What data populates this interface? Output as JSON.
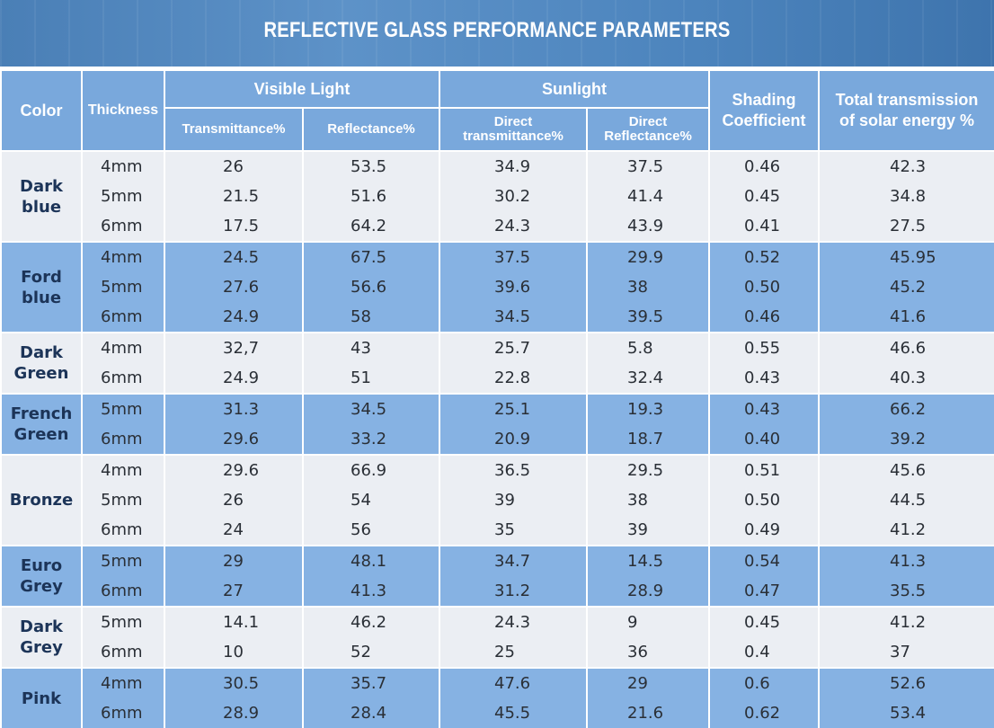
{
  "title": "REFLECTIVE GLASS PERFORMANCE PARAMETERS",
  "headers": {
    "color": "Color",
    "thickness": "Thickness",
    "visible_light": "Visible Light",
    "sunlight": "Sunlight",
    "shading_1": "Shading",
    "shading_2": "Coefficient",
    "total_1": "Total transmission",
    "total_2": "of solar energy %",
    "transmittance": "Transmittance%",
    "reflectance": "Reflectance%",
    "direct_t_1": "Direct",
    "direct_t_2": "transmittance%",
    "direct_r_1": "Direct",
    "direct_r_2": "Reflectance%"
  },
  "groups": [
    {
      "name_1": "Dark",
      "name_2": "blue",
      "rows": [
        {
          "thickness": "4mm",
          "vt": "26",
          "vr": "53.5",
          "dt": "34.9",
          "dr": "37.5",
          "sc": "0.46",
          "tt": "42.3"
        },
        {
          "thickness": "5mm",
          "vt": "21.5",
          "vr": "51.6",
          "dt": "30.2",
          "dr": "41.4",
          "sc": "0.45",
          "tt": "34.8"
        },
        {
          "thickness": "6mm",
          "vt": "17.5",
          "vr": "64.2",
          "dt": "24.3",
          "dr": "43.9",
          "sc": "0.41",
          "tt": "27.5"
        }
      ]
    },
    {
      "name_1": "Ford",
      "name_2": "blue",
      "rows": [
        {
          "thickness": "4mm",
          "vt": "24.5",
          "vr": "67.5",
          "dt": "37.5",
          "dr": "29.9",
          "sc": "0.52",
          "tt": "45.95"
        },
        {
          "thickness": "5mm",
          "vt": "27.6",
          "vr": "56.6",
          "dt": "39.6",
          "dr": "38",
          "sc": "0.50",
          "tt": "45.2"
        },
        {
          "thickness": "6mm",
          "vt": "24.9",
          "vr": "58",
          "dt": "34.5",
          "dr": "39.5",
          "sc": "0.46",
          "tt": "41.6"
        }
      ]
    },
    {
      "name_1": "Dark",
      "name_2": "Green",
      "rows": [
        {
          "thickness": "4mm",
          "vt": "32,7",
          "vr": "43",
          "dt": "25.7",
          "dr": "5.8",
          "sc": "0.55",
          "tt": "46.6"
        },
        {
          "thickness": "6mm",
          "vt": "24.9",
          "vr": "51",
          "dt": "22.8",
          "dr": "32.4",
          "sc": "0.43",
          "tt": "40.3"
        }
      ]
    },
    {
      "name_1": "French",
      "name_2": "Green",
      "rows": [
        {
          "thickness": "5mm",
          "vt": "31.3",
          "vr": "34.5",
          "dt": "25.1",
          "dr": "19.3",
          "sc": "0.43",
          "tt": "66.2"
        },
        {
          "thickness": "6mm",
          "vt": "29.6",
          "vr": "33.2",
          "dt": "20.9",
          "dr": "18.7",
          "sc": "0.40",
          "tt": "39.2"
        }
      ]
    },
    {
      "name_1": "Bronze",
      "name_2": "",
      "rows": [
        {
          "thickness": "4mm",
          "vt": "29.6",
          "vr": "66.9",
          "dt": "36.5",
          "dr": "29.5",
          "sc": "0.51",
          "tt": "45.6"
        },
        {
          "thickness": "5mm",
          "vt": "26",
          "vr": "54",
          "dt": "39",
          "dr": "38",
          "sc": "0.50",
          "tt": "44.5"
        },
        {
          "thickness": "6mm",
          "vt": "24",
          "vr": "56",
          "dt": "35",
          "dr": "39",
          "sc": "0.49",
          "tt": "41.2"
        }
      ]
    },
    {
      "name_1": "Euro",
      "name_2": "Grey",
      "rows": [
        {
          "thickness": "5mm",
          "vt": "29",
          "vr": "48.1",
          "dt": "34.7",
          "dr": "14.5",
          "sc": "0.54",
          "tt": "41.3"
        },
        {
          "thickness": "6mm",
          "vt": "27",
          "vr": "41.3",
          "dt": "31.2",
          "dr": "28.9",
          "sc": "0.47",
          "tt": "35.5"
        }
      ]
    },
    {
      "name_1": "Dark",
      "name_2": "Grey",
      "rows": [
        {
          "thickness": "5mm",
          "vt": "14.1",
          "vr": "46.2",
          "dt": "24.3",
          "dr": "9",
          "sc": "0.45",
          "tt": "41.2"
        },
        {
          "thickness": "6mm",
          "vt": "10",
          "vr": "52",
          "dt": "25",
          "dr": "36",
          "sc": "0.4",
          "tt": "37"
        }
      ]
    },
    {
      "name_1": "Pink",
      "name_2": "",
      "rows": [
        {
          "thickness": "4mm",
          "vt": "30.5",
          "vr": "35.7",
          "dt": "47.6",
          "dr": "29",
          "sc": "0.6",
          "tt": "52.6"
        },
        {
          "thickness": "6mm",
          "vt": "28.9",
          "vr": "28.4",
          "dt": "45.5",
          "dr": "21.6",
          "sc": "0.62",
          "tt": "53.4"
        }
      ]
    }
  ]
}
